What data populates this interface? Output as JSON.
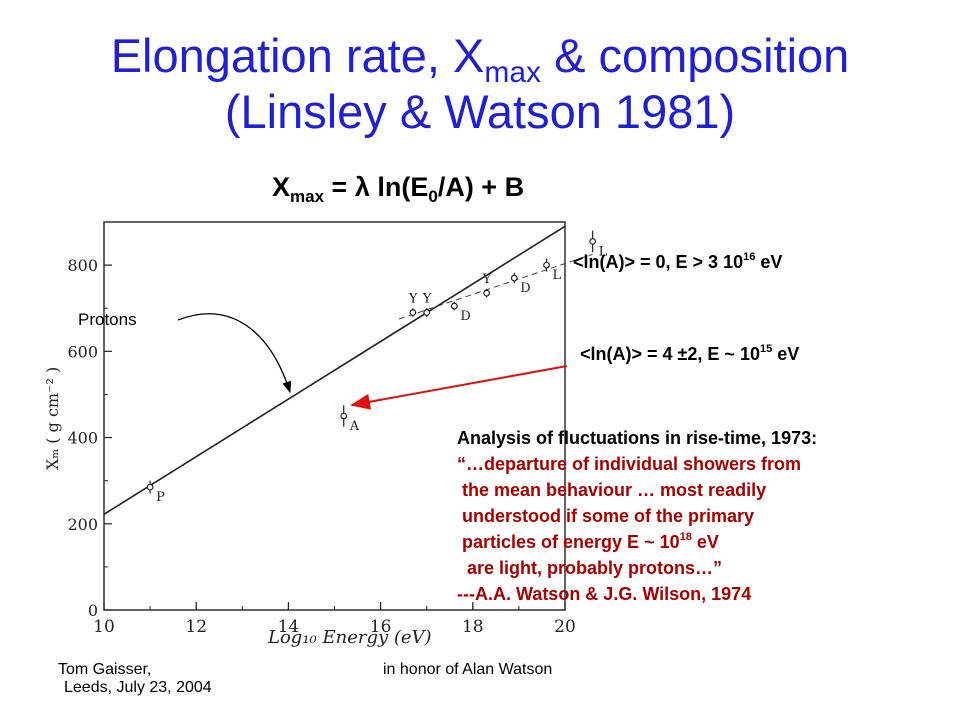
{
  "slide": {
    "title_line1_a": "Elongation rate, X",
    "title_line1_sub": "max",
    "title_line1_b": " & composition",
    "title_line2": "(Linsley & Watson 1981)",
    "formula_a": "X",
    "formula_sub": "max",
    "formula_b": " = λ ln(E",
    "formula_sub2": "0",
    "formula_c": "/A) + B",
    "note_top_a": "<ln(A)> = 0, E > 3 10",
    "note_top_sup": "16",
    "note_top_b": " eV",
    "note_mid_a": "<ln(A)> = 4 ±2,  E ~ 10",
    "note_mid_sup": "15",
    "note_mid_b": " eV",
    "protons_label": "Protons",
    "analysis_head": "Analysis of fluctuations in rise-time, 1973:",
    "quote_1": "“…departure of individual showers from",
    "quote_2": " the mean behaviour … most readily",
    "quote_3": " understood if some of the primary",
    "quote_4a": " particles of energy E ~ 10",
    "quote_4sup": "18",
    "quote_4b": " eV",
    "quote_5": "  are light, probably protons…”",
    "quote_6": "---A.A. Watson & J.G. Wilson, 1974",
    "footer_left_1": "Tom Gaisser,",
    "footer_left_2": "Leeds, July 23, 2004",
    "footer_center": "in honor of Alan Watson",
    "colors": {
      "title": "#1f1fd6",
      "quote": "#a80000",
      "arrow": "#e01010"
    }
  },
  "chart_data": {
    "type": "line",
    "xlabel": "Log₁₀ Energy  (eV)",
    "ylabel": "Xₘ  ( g cm⁻² )",
    "xlim": [
      10,
      20
    ],
    "ylim": [
      0,
      900
    ],
    "x_ticks": [
      "10",
      "12",
      "14",
      "16",
      "18",
      "20"
    ],
    "y_ticks": [
      "0",
      "200",
      "400",
      "600",
      "800"
    ],
    "series": [
      {
        "x": [
          10,
          20
        ],
        "y": [
          222,
          890
        ]
      }
    ],
    "points": [
      {
        "label": "P",
        "x": 11.0,
        "y": 285,
        "err": 15
      },
      {
        "label": "A",
        "x": 15.2,
        "y": 450,
        "err": 25
      },
      {
        "label": "Y",
        "x": 16.7,
        "y": 690,
        "err": 10
      },
      {
        "label": "Y",
        "x": 17.0,
        "y": 690,
        "err": 10
      },
      {
        "label": "D",
        "x": 17.6,
        "y": 705,
        "err": 10
      },
      {
        "label": "Y",
        "x": 18.3,
        "y": 735,
        "err": 10
      },
      {
        "label": "D",
        "x": 18.9,
        "y": 770,
        "err": 12
      },
      {
        "label": "L",
        "x": 19.6,
        "y": 800,
        "err": 15
      },
      {
        "label": "L",
        "x": 20.6,
        "y": 855,
        "err": 25
      }
    ]
  }
}
